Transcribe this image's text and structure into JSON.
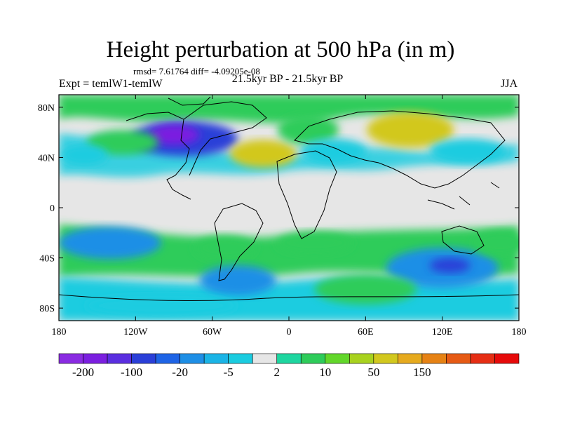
{
  "title": "Height perturbation at 500 hPa (in m)",
  "stats_line": "rmsd= 7.61764 diff= -4.09205e-08",
  "experiment_label": "Expt = temlW1-temlW",
  "period_label": "21.5kyr BP - 21.5kyr BP",
  "season_label": "JJA",
  "chart_data": {
    "type": "heatmap",
    "title": "Height perturbation at 500 hPa (in m)",
    "xlim": [
      -180,
      180
    ],
    "ylim": [
      -90,
      90
    ],
    "x_ticks": [
      -180,
      -120,
      -60,
      0,
      60,
      120,
      180
    ],
    "x_tick_labels": [
      "180",
      "120W",
      "60W",
      "0",
      "60E",
      "120E",
      "180"
    ],
    "y_ticks": [
      80,
      40,
      0,
      -40,
      -80
    ],
    "y_tick_labels": [
      "80N",
      "40N",
      "0",
      "40S",
      "80S"
    ],
    "colorbar": {
      "colors": [
        "#8a2be2",
        "#7b1fe0",
        "#5a2ee0",
        "#2a3fd8",
        "#1e64e6",
        "#1e8fe6",
        "#1ab4e6",
        "#1acce0",
        "#e6e6e6",
        "#1ed6a0",
        "#2ecc5a",
        "#62d72a",
        "#a8d21e",
        "#d2c81e",
        "#e6aa1e",
        "#e68214",
        "#e65a14",
        "#e62e14",
        "#e60a0a"
      ],
      "tick_labels": [
        "-200",
        "-100",
        "-20",
        "-5",
        "2",
        "10",
        "50",
        "150"
      ],
      "tick_boundaries": [
        1,
        3,
        5,
        7,
        9,
        11,
        13,
        15
      ]
    },
    "field_blobs": [
      {
        "lon": -82,
        "lat": 55,
        "rx": 42,
        "ry": 14,
        "value": -100
      },
      {
        "lon": -90,
        "lat": 58,
        "rx": 20,
        "ry": 8,
        "value": -200
      },
      {
        "lon": -130,
        "lat": 52,
        "rx": 28,
        "ry": 10,
        "value": 10
      },
      {
        "lon": -20,
        "lat": 43,
        "rx": 26,
        "ry": 11,
        "value": 50
      },
      {
        "lon": 15,
        "lat": 62,
        "rx": 24,
        "ry": 12,
        "value": 10
      },
      {
        "lon": 35,
        "lat": 45,
        "rx": 26,
        "ry": 10,
        "value": -5
      },
      {
        "lon": 95,
        "lat": 62,
        "rx": 34,
        "ry": 14,
        "value": 50
      },
      {
        "lon": 140,
        "lat": 45,
        "rx": 30,
        "ry": 10,
        "value": -5
      },
      {
        "lon": -160,
        "lat": 42,
        "rx": 18,
        "ry": 8,
        "value": -5
      },
      {
        "lon": -140,
        "lat": -28,
        "rx": 40,
        "ry": 13,
        "value": -20
      },
      {
        "lon": -50,
        "lat": -32,
        "rx": 24,
        "ry": 10,
        "value": 10
      },
      {
        "lon": 20,
        "lat": -28,
        "rx": 30,
        "ry": 9,
        "value": 10
      },
      {
        "lon": -40,
        "lat": -58,
        "rx": 30,
        "ry": 12,
        "value": -20
      },
      {
        "lon": 120,
        "lat": -48,
        "rx": 44,
        "ry": 16,
        "value": -20
      },
      {
        "lon": 126,
        "lat": -46,
        "rx": 16,
        "ry": 6,
        "value": -100
      },
      {
        "lon": 60,
        "lat": -65,
        "rx": 40,
        "ry": 12,
        "value": 10
      },
      {
        "lon": -100,
        "lat": -78,
        "rx": 60,
        "ry": 8,
        "value": -5
      },
      {
        "lon": 165,
        "lat": -28,
        "rx": 20,
        "ry": 10,
        "value": 10
      }
    ]
  }
}
